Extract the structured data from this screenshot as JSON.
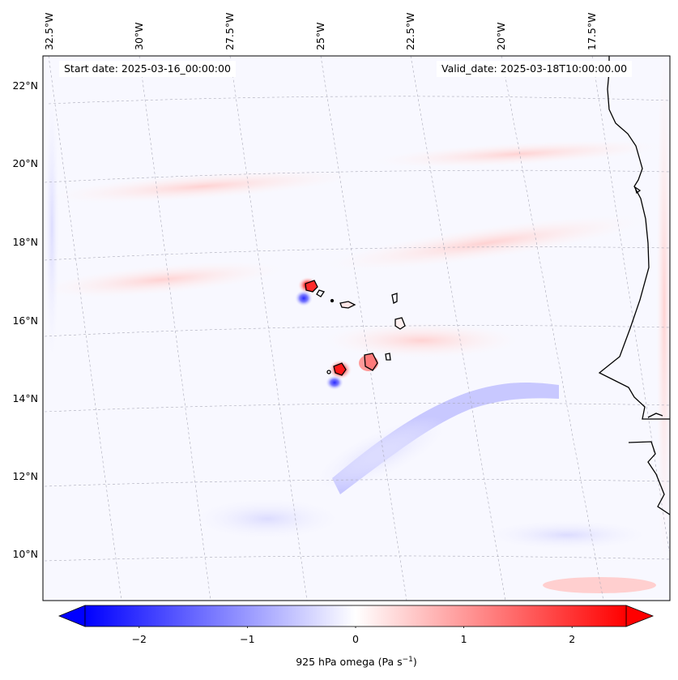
{
  "map": {
    "projection": "lambert-conformal",
    "region": "Cape Verde Islands and West African coast",
    "start_date_text": "Start date: 2025-03-16_00:00:00",
    "valid_date_text": "Valid_date: 2025-03-18T10:00:00.00",
    "gridlines": "dashed",
    "land_fill": "none",
    "coastline_color": "#000000",
    "lon_labels": [
      "32.5°W",
      "30°W",
      "27.5°W",
      "25°W",
      "22.5°W",
      "20°W",
      "17.5°W"
    ],
    "lat_labels": [
      "22°N",
      "20°N",
      "18°N",
      "16°N",
      "14°N",
      "12°N",
      "10°N"
    ],
    "field": {
      "variable": "925 hPa omega",
      "colormap": "bwr",
      "range": [
        -2.5,
        2.5
      ],
      "background_value_color": "#f8f8ff"
    }
  },
  "colorbar": {
    "ticks": [
      "−2",
      "−1",
      "0",
      "1",
      "2"
    ],
    "tick_values": [
      -2,
      -1,
      0,
      1,
      2
    ],
    "min": -2.5,
    "max": 2.5,
    "extend": "both",
    "low_color": "#0000ff",
    "mid_color": "#ffffff",
    "high_color": "#ff0000",
    "label_prefix": "925 hPa omega (Pa s",
    "label_exp": "−1",
    "label_suffix": ")"
  }
}
